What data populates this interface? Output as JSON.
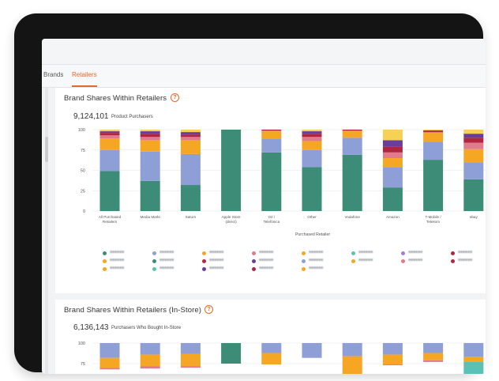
{
  "tabs": [
    {
      "label": "Brands",
      "active": false
    },
    {
      "label": "Retailers",
      "active": true
    }
  ],
  "colors": {
    "accent": "#e26a2c",
    "teal": "#3d8c78",
    "periwinkle": "#8e9ed6",
    "orange": "#f5a623",
    "pink": "#e07a8d",
    "red": "#b3253e",
    "purple": "#6a3d9a",
    "yellow": "#f6d155",
    "lightteal": "#59c1b6",
    "lightpurple": "#a17cd9"
  },
  "section1": {
    "title": "Brand Shares Within Retailers",
    "metric_value": "9,124,101",
    "metric_label": "Product Purchasers",
    "x_axis_title": "Purchased Retailer"
  },
  "section2": {
    "title": "Brand Shares Within Retailers (In-Store)",
    "metric_value": "6,136,143",
    "metric_label": "Purchasers Who Bought In-Store"
  },
  "chart_data": [
    {
      "type": "bar",
      "stacked": true,
      "xlabel": "Purchased Retailer",
      "ylabel": "",
      "ylim": [
        0,
        100
      ],
      "yticks": [
        0,
        25,
        50,
        75,
        100
      ],
      "grid": true,
      "categories": [
        "All Purchased Retailers",
        "Media Markt",
        "Saturn",
        "Apple Store (direct)",
        "O2 / Telefónica",
        "Other",
        "Vodafone",
        "Amazon",
        "T-Mobile / Telekom",
        "ebay"
      ],
      "series": [
        {
          "color": "#3d8c78",
          "values": [
            49,
            37,
            32,
            100,
            72,
            54,
            69,
            29,
            63,
            39
          ]
        },
        {
          "color": "#8e9ed6",
          "values": [
            26,
            36,
            38,
            0,
            17,
            21,
            21,
            25,
            22,
            21
          ]
        },
        {
          "color": "#f5a623",
          "values": [
            14,
            14,
            17,
            0,
            9,
            11,
            8,
            11,
            11,
            16
          ]
        },
        {
          "color": "#e07a8d",
          "values": [
            4,
            4,
            4,
            0,
            1,
            5,
            1,
            7,
            1,
            8
          ]
        },
        {
          "color": "#b3253e",
          "values": [
            3,
            4,
            3,
            0,
            1,
            4,
            1,
            7,
            1,
            6
          ]
        },
        {
          "color": "#6a3d9a",
          "values": [
            2,
            3,
            3,
            0,
            0,
            3,
            0,
            8,
            1,
            5
          ]
        },
        {
          "color": "#f6d155",
          "values": [
            2,
            2,
            3,
            0,
            0,
            2,
            0,
            13,
            1,
            5
          ]
        }
      ],
      "legend": {
        "placement": "bottom",
        "legible": false
      }
    },
    {
      "type": "bar",
      "stacked": true,
      "ylim": [
        0,
        100
      ],
      "yticks_visible": [
        75,
        100
      ],
      "grid": true,
      "partially_visible": true,
      "series": [
        {
          "color": "#8e9ed6",
          "values": [
            18,
            14,
            13,
            0,
            12,
            18,
            16,
            14,
            12,
            17
          ]
        },
        {
          "color": "#f5a623",
          "values": [
            12,
            14,
            15,
            0,
            14,
            0,
            22,
            12,
            9,
            6
          ]
        },
        {
          "color": "#e07a8d",
          "values": [
            2,
            3,
            2,
            0,
            0,
            0,
            0,
            1,
            2,
            0
          ]
        },
        {
          "color": "#3d8c78",
          "values": [
            0,
            0,
            0,
            25,
            0,
            0,
            0,
            0,
            0,
            0
          ]
        },
        {
          "color": "#59c1b6",
          "values": [
            0,
            0,
            0,
            0,
            0,
            0,
            0,
            0,
            0,
            20
          ]
        }
      ]
    }
  ]
}
